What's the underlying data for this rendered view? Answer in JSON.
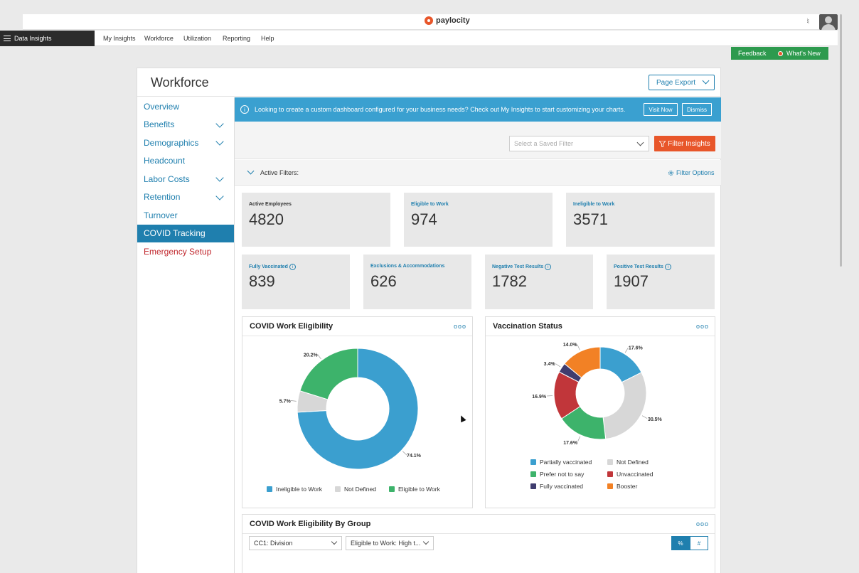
{
  "topbar": {
    "brand": "paylocity"
  },
  "navbar": {
    "app_menu": "Data Insights",
    "links": [
      "My Insights",
      "Workforce",
      "Utilization",
      "Reporting",
      "Help"
    ]
  },
  "feedback": {
    "feedback": "Feedback",
    "whats_new": "What's New"
  },
  "page": {
    "title": "Workforce",
    "export": "Page Export"
  },
  "sidebar": {
    "items": [
      {
        "label": "Overview"
      },
      {
        "label": "Benefits"
      },
      {
        "label": "Demographics"
      },
      {
        "label": "Headcount"
      },
      {
        "label": "Labor Costs"
      },
      {
        "label": "Retention"
      },
      {
        "label": "Turnover"
      },
      {
        "label": "COVID Tracking"
      },
      {
        "label": "Emergency Setup"
      }
    ]
  },
  "banner": {
    "text": "Looking to create a custom dashboard configured for your business needs? Check out My Insights to start customizing your charts.",
    "visit": "Visit Now",
    "dismiss": "Dismiss"
  },
  "filters": {
    "saved_placeholder": "Select a Saved Filter",
    "filter_insights": "Filter Insights",
    "active_filters": "Active Filters:",
    "filter_options": "Filter Options"
  },
  "stats": [
    {
      "label": "Active Employees",
      "value": "4820"
    },
    {
      "label": "Eligible to Work",
      "value": "974"
    },
    {
      "label": "Ineligible to Work",
      "value": "3571"
    },
    {
      "label": "Fully Vaccinated",
      "value": "839"
    },
    {
      "label": "Exclusions & Accommodations",
      "value": "626"
    },
    {
      "label": "Negative Test Results",
      "value": "1782"
    },
    {
      "label": "Positive Test Results",
      "value": "1907"
    }
  ],
  "charts": {
    "eligibility": {
      "title": "COVID Work Eligibility",
      "more": "ooo",
      "legend": [
        "Ineligible to Work",
        "Not Defined",
        "Eligible to Work"
      ]
    },
    "vaccination": {
      "title": "Vaccination Status",
      "more": "ooo",
      "legend": [
        "Partially vaccinated",
        "Not Defined",
        "Prefer not to say",
        "Unvaccinated",
        "Fully vaccinated",
        "Booster"
      ]
    },
    "by_group": {
      "title": "COVID Work Eligibility By Group",
      "more": "ooo",
      "group_select": "CC1: Division",
      "status_select": "Eligible to Work: High t...",
      "toggle_pct": "%",
      "toggle_num": "#"
    }
  },
  "chart_data": [
    {
      "type": "pie",
      "categories": [
        "Ineligible to Work",
        "Not Defined",
        "Eligible to Work"
      ],
      "values": [
        74.1,
        5.7,
        20.2
      ],
      "labels": [
        "74.1%",
        "5.7%",
        "20.2%"
      ],
      "colors": [
        "#3b9fcf",
        "#d7d7d7",
        "#3db36b"
      ]
    },
    {
      "type": "pie",
      "categories": [
        "Partially vaccinated",
        "Not Defined",
        "Prefer not to say",
        "Unvaccinated",
        "Fully vaccinated",
        "Booster"
      ],
      "values": [
        17.6,
        30.5,
        17.6,
        16.9,
        3.4,
        14.0
      ],
      "labels": [
        "17.6%",
        "30.5%",
        "17.6%",
        "16.9%",
        "3.4%",
        "14.0%"
      ],
      "colors": [
        "#3b9fcf",
        "#d7d7d7",
        "#3db36b",
        "#c1363a",
        "#3f3c6e",
        "#f28125"
      ]
    }
  ]
}
